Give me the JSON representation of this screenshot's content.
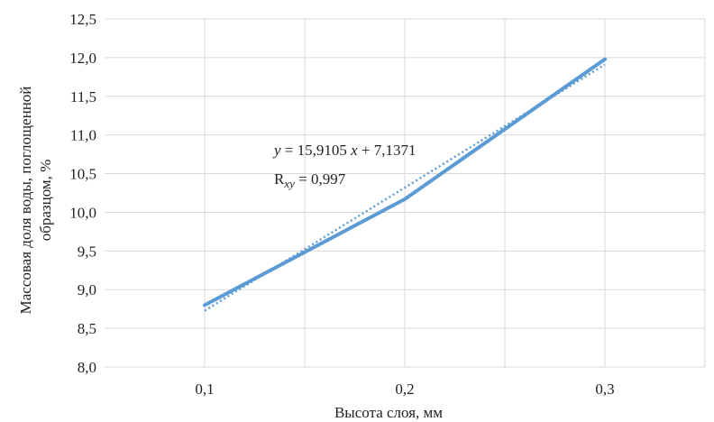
{
  "chart_data": {
    "type": "line",
    "x": [
      0.1,
      0.2,
      0.3
    ],
    "x_tick_labels": [
      "0,1",
      "0,2",
      "0,3"
    ],
    "series": [
      {
        "values": [
          8.8,
          10.17,
          11.98
        ],
        "style": "solid",
        "color": "#5b9bd5"
      },
      {
        "values": [
          8.728,
          10.319,
          11.91
        ],
        "style": "dotted",
        "color": "#5b9bd5"
      }
    ],
    "xlabel": "Высота слоя, мм",
    "ylabel_line1": "Массовая доля воды, поглощенной",
    "ylabel_line2": "образцом, %",
    "ylim": [
      8.0,
      12.5
    ],
    "xlim": [
      0.05,
      0.35
    ],
    "y_ticks": [
      8.0,
      8.5,
      9.0,
      9.5,
      10.0,
      10.5,
      11.0,
      11.5,
      12.0,
      12.5
    ],
    "y_tick_labels": [
      "8,0",
      "8,5",
      "9,0",
      "9,5",
      "10,0",
      "10,5",
      "11,0",
      "11,5",
      "12,0",
      "12,5"
    ],
    "x_grid": [
      0.1,
      0.15,
      0.2,
      0.25,
      0.3,
      0.35
    ],
    "grid": true,
    "annotations": {
      "equation_y": "y",
      "equation_rest": " = 15,9105 ",
      "equation_x": "x",
      "equation_tail": " + 7,1371",
      "r_main": "R",
      "r_sub": "xy",
      "r_value": " = 0,997"
    },
    "colors": {
      "grid": "#d9d9d9",
      "series": "#5b9bd5"
    }
  }
}
